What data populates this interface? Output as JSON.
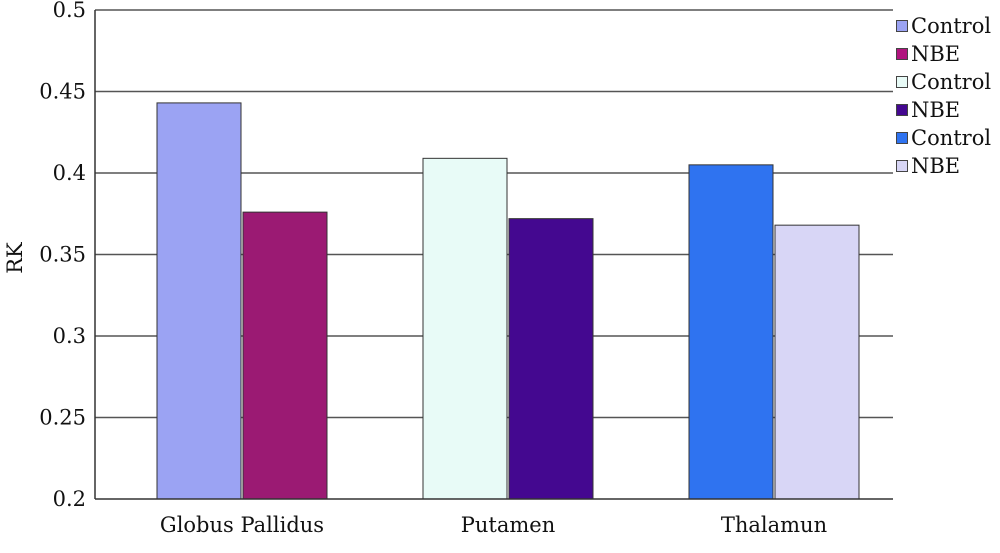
{
  "chart_data": {
    "type": "bar",
    "categories": [
      "Globus Pallidus",
      "Putamen",
      "Thalamun"
    ],
    "bars": [
      {
        "category": "Globus Pallidus",
        "series": "Control",
        "value": 0.443,
        "color": "#9ba3f3"
      },
      {
        "category": "Globus Pallidus",
        "series": "NBE",
        "value": 0.376,
        "color": "#9b1a73"
      },
      {
        "category": "Putamen",
        "series": "Control",
        "value": 0.409,
        "color": "#e8fbf7"
      },
      {
        "category": "Putamen",
        "series": "NBE",
        "value": 0.372,
        "color": "#440890"
      },
      {
        "category": "Thalamun",
        "series": "Control",
        "value": 0.405,
        "color": "#2f73f0"
      },
      {
        "category": "Thalamun",
        "series": "NBE",
        "value": 0.368,
        "color": "#d8d6f6"
      }
    ],
    "legend": [
      {
        "label": "Control",
        "color": "#9ba3f3"
      },
      {
        "label": "NBE",
        "color": "#b0147e"
      },
      {
        "label": "Control",
        "color": "#e8fbf7"
      },
      {
        "label": "NBE",
        "color": "#440890"
      },
      {
        "label": "Control",
        "color": "#2f73f0"
      },
      {
        "label": "NBE",
        "color": "#d8d6f6"
      }
    ],
    "yticks": [
      "0.2",
      "0.25",
      "0.3",
      "0.35",
      "0.4",
      "0.45",
      "0.5"
    ],
    "ylim": [
      0.2,
      0.5
    ],
    "xlabel": "",
    "ylabel": "RK",
    "title": "",
    "grid": true,
    "legend_position": "right"
  }
}
